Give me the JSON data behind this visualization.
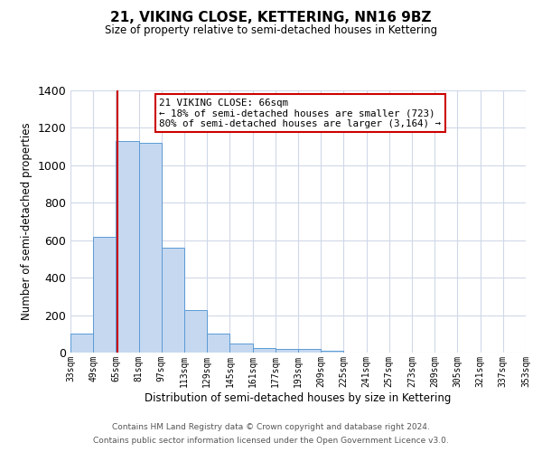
{
  "title": "21, VIKING CLOSE, KETTERING, NN16 9BZ",
  "subtitle": "Size of property relative to semi-detached houses in Kettering",
  "xlabel": "Distribution of semi-detached houses by size in Kettering",
  "ylabel": "Number of semi-detached properties",
  "bin_edges": [
    33,
    49,
    65,
    81,
    97,
    113,
    129,
    145,
    161,
    177,
    193,
    209,
    225,
    241,
    257,
    273,
    289,
    305,
    321,
    337,
    353
  ],
  "bar_heights": [
    100,
    620,
    1130,
    1120,
    560,
    225,
    100,
    50,
    25,
    20,
    20,
    10,
    0,
    0,
    0,
    0,
    0,
    0,
    0,
    0
  ],
  "bar_color": "#c5d8f0",
  "bar_edge_color": "#5b9bd5",
  "property_size": 66,
  "vline_color": "#cc0000",
  "annotation_line1": "21 VIKING CLOSE: 66sqm",
  "annotation_line2": "← 18% of semi-detached houses are smaller (723)",
  "annotation_line3": "80% of semi-detached houses are larger (3,164) →",
  "annotation_box_color": "#ffffff",
  "annotation_box_edge": "#cc0000",
  "ylim": [
    0,
    1400
  ],
  "yticks": [
    0,
    200,
    400,
    600,
    800,
    1000,
    1200,
    1400
  ],
  "footnote1": "Contains HM Land Registry data © Crown copyright and database right 2024.",
  "footnote2": "Contains public sector information licensed under the Open Government Licence v3.0.",
  "background_color": "#ffffff",
  "grid_color": "#d0d8e8"
}
